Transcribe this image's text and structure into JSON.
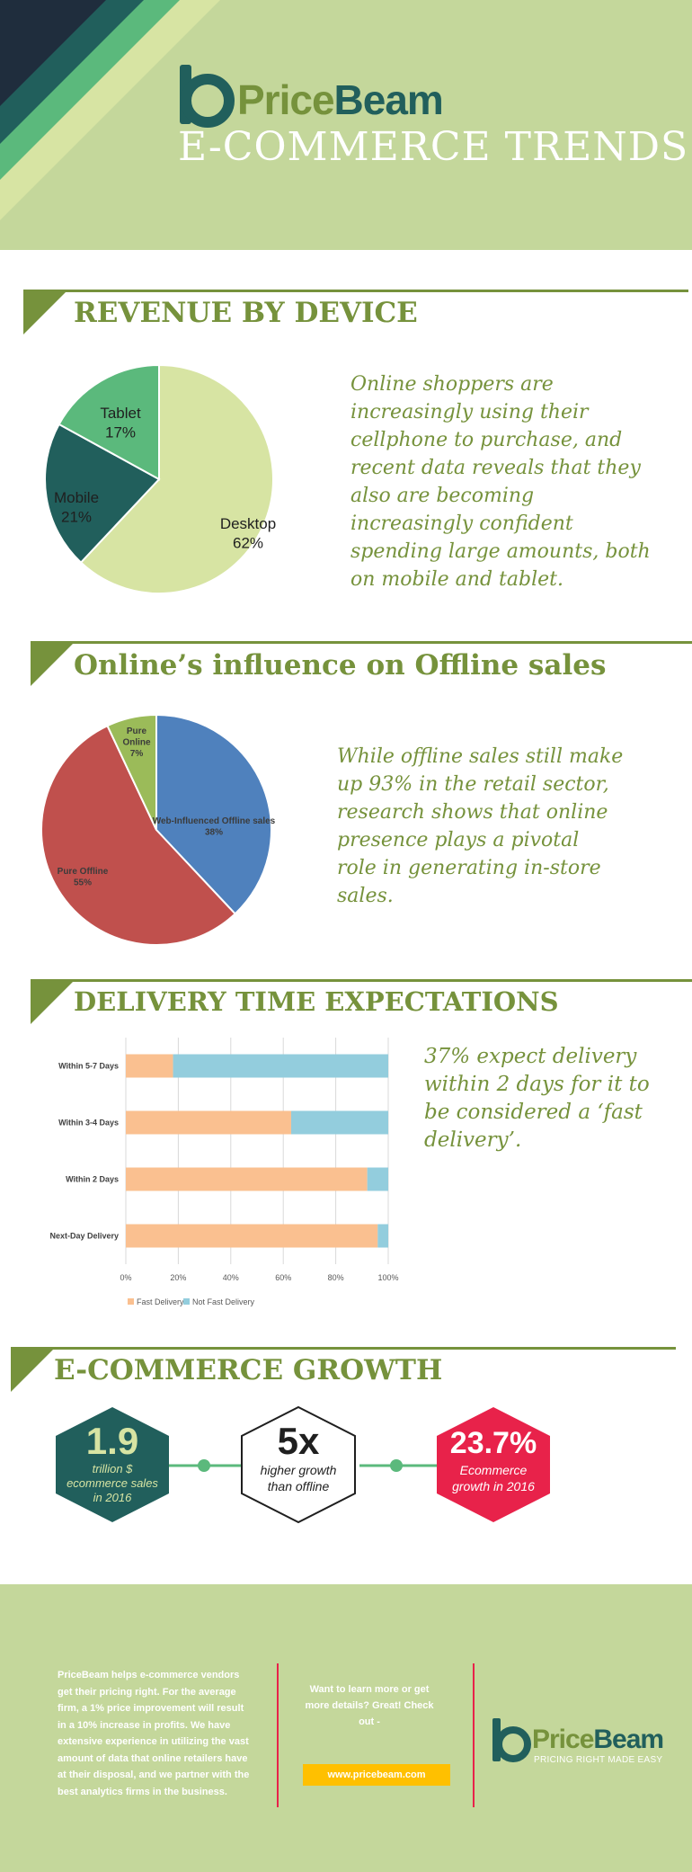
{
  "header": {
    "brand_price": "Price",
    "brand_beam": "Beam",
    "title": "E-COMMERCE TRENDS"
  },
  "revenue": {
    "title": "REVENUE BY DEVICE",
    "description": "Online shoppers are increasingly using their cellphone to purchase, and recent data reveals that they also are becoming increasingly confident spending large amounts, both on mobile and tablet."
  },
  "offline": {
    "title": "Online’s influence on Offline sales",
    "description": "While offline sales still make up 93% in the retail sector, research shows that online presence plays a pivotal role in generating in-store sales."
  },
  "delivery": {
    "title": "DELIVERY TIME EXPECTATIONS",
    "description": "37% expect delivery within 2 days for it to be considered a ‘fast delivery’."
  },
  "growth": {
    "title": "E-COMMERCE GROWTH",
    "items": [
      {
        "value": "1.9",
        "text": "trillion $ ecommerce sales in 2016"
      },
      {
        "value": "5x",
        "text": "higher growth than offline"
      },
      {
        "value": "23.7%",
        "text": "Ecommerce growth in 2016"
      }
    ]
  },
  "footer": {
    "about": "PriceBeam helps e-commerce vendors get their pricing right. For the average firm, a 1% price improvement will result in a 10% increase in profits. We have extensive experience in utilizing the vast amount of data that online retailers have at their disposal, and we partner with the best analytics firms in the business.",
    "cta": "Want to learn more or get more details? Great! Check out -",
    "link": "www.pricebeam.com",
    "tagline": "PRICING RIGHT MADE EASY",
    "brand_price": "Price",
    "brand_beam": "Beam"
  },
  "chart_data": [
    {
      "type": "pie",
      "categories": [
        "Desktop",
        "Mobile",
        "Tablet"
      ],
      "values": [
        62,
        21,
        17
      ],
      "labels": [
        "Desktop\n62%",
        "Mobile\n21%",
        "Tablet\n17%"
      ],
      "colors": [
        "#d7e4a3",
        "#215f5c",
        "#5bb97c"
      ]
    },
    {
      "type": "pie",
      "categories": [
        "Web-Influenced Offline sales",
        "Pure Offline",
        "Pure Online"
      ],
      "values": [
        38,
        55,
        7
      ],
      "labels": [
        "Web-Influenced Offline sales\n38%",
        "Pure Offline\n55%",
        "Pure\nOnline\n7%"
      ],
      "colors": [
        "#4f81bd",
        "#c0504d",
        "#9bbb59"
      ]
    },
    {
      "type": "bar",
      "orientation": "horizontal",
      "stacked": true,
      "categories": [
        "Within 5-7 Days",
        "Within 3-4 Days",
        "Within 2 Days",
        "Next-Day Delivery"
      ],
      "series": [
        {
          "name": "Fast Delivery",
          "values": [
            18,
            63,
            92,
            96
          ],
          "color": "#fac090"
        },
        {
          "name": "Not Fast Delivery",
          "values": [
            82,
            37,
            8,
            4
          ],
          "color": "#93cddd"
        }
      ],
      "xlim": [
        0,
        100
      ],
      "xticks": [
        "0%",
        "20%",
        "40%",
        "60%",
        "80%",
        "100%"
      ],
      "grid": true,
      "legend": "bottom"
    }
  ]
}
